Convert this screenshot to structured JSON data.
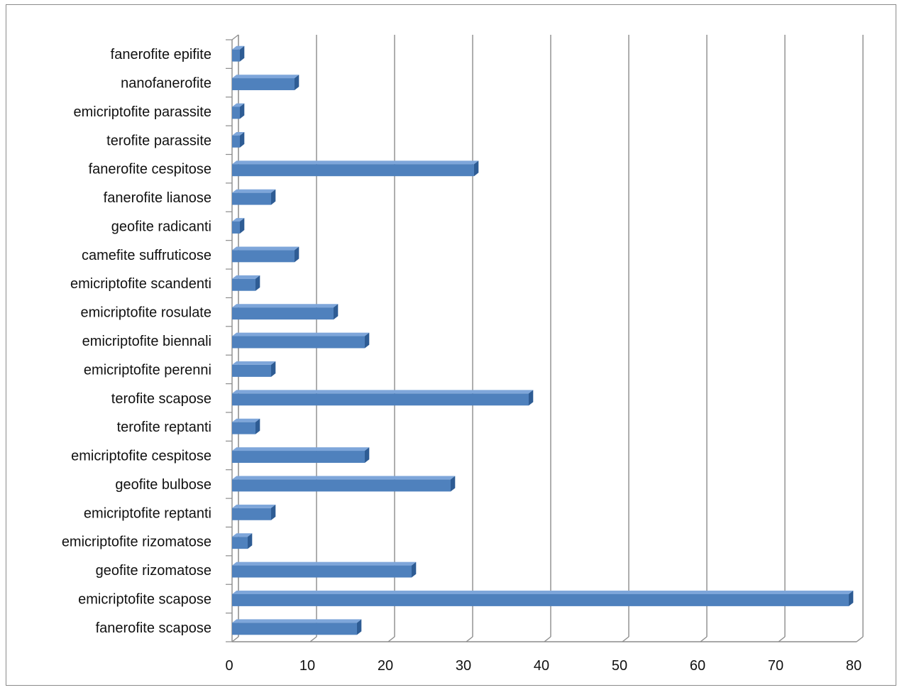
{
  "chart_data": {
    "type": "bar",
    "orientation": "horizontal",
    "title": "",
    "xlabel": "",
    "ylabel": "",
    "categories": [
      "fanerofite scapose",
      "emicriptofite scapose",
      "geofite rizomatose",
      "emicriptofite rizomatose",
      "emicriptofite reptanti",
      "geofite bulbose",
      "emicriptofite cespitose",
      "terofite reptanti",
      "terofite scapose",
      "emicriptofite perenni",
      "emicriptofite biennali",
      "emicriptofite rosulate",
      "emicriptofite scandenti",
      "camefite suffruticose",
      "geofite radicanti",
      "fanerofite lianose",
      "fanerofite cespitose",
      "terofite parassite",
      "emicriptofite parassite",
      "nanofanerofite",
      "fanerofite epifite"
    ],
    "values": [
      16,
      79,
      23,
      2,
      5,
      28,
      17,
      3,
      38,
      5,
      17,
      13,
      3,
      8,
      1,
      5,
      31,
      1,
      1,
      8,
      1
    ],
    "xlim": [
      0,
      80
    ],
    "xticks": [
      0,
      10,
      20,
      30,
      40,
      50,
      60,
      70,
      80
    ],
    "grid": "vertical",
    "legend": "none",
    "bar_color": "#4F81BD",
    "bar_top_color": "#7EA6DA",
    "bar_end_color": "#2E5C94",
    "grid_color": "#8C8C8C"
  }
}
